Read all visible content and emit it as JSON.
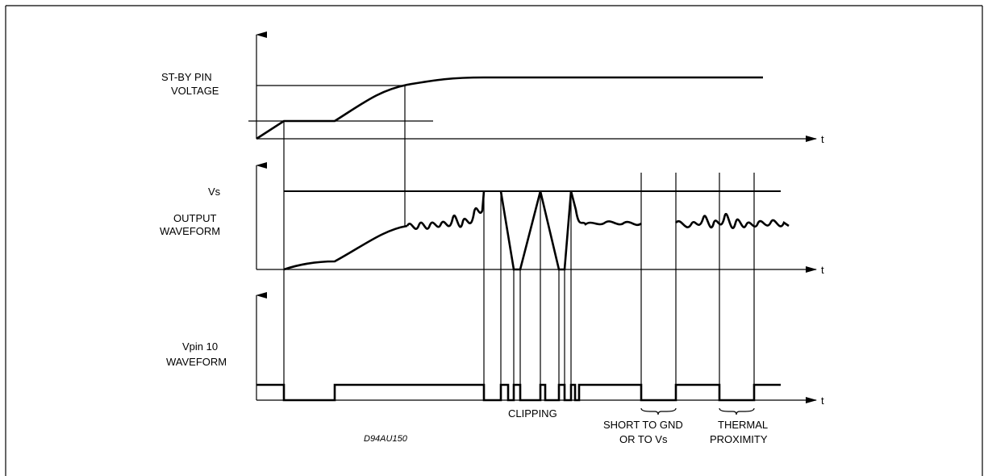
{
  "panels": [
    {
      "id": "standby",
      "label_lines": [
        "ST-BY PIN",
        "VOLTAGE"
      ],
      "axis_label": "t"
    },
    {
      "id": "output",
      "label_lines": [
        "OUTPUT",
        "WAVEFORM"
      ],
      "axis_label": "t",
      "level_label": "Vs"
    },
    {
      "id": "vpin10",
      "label_lines": [
        "Vpin 10",
        "WAVEFORM"
      ],
      "axis_label": "t"
    }
  ],
  "events": {
    "clipping": {
      "label": "CLIPPING"
    },
    "short": {
      "label_lines": [
        "SHORT TO GND",
        "OR TO Vs"
      ]
    },
    "thermal": {
      "label_lines": [
        "THERMAL",
        "PROXIMITY"
      ]
    }
  },
  "drawing_code": "D94AU150",
  "colors": {
    "line": "#000000",
    "background": "#ffffff"
  }
}
